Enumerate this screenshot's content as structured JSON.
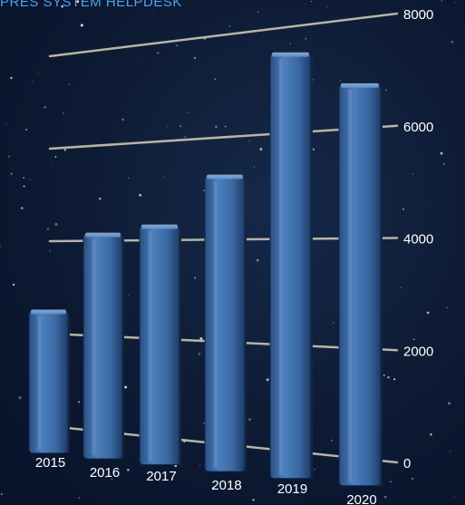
{
  "chart_data": {
    "type": "bar",
    "title": "PRES SYSTEM HELPDESK",
    "categories": [
      "2015",
      "2016",
      "2017",
      "2018",
      "2019",
      "2020"
    ],
    "values": [
      2500,
      4150,
      4300,
      5250,
      7500,
      6800
    ],
    "ylim": [
      0,
      8000
    ],
    "yticks": [
      "0",
      "2000",
      "4000",
      "6000",
      "8000"
    ],
    "grid": true,
    "colors": {
      "bar": "#3f6fa8",
      "grid": "#b8b4a6",
      "title": "#4fa3e8",
      "label": "#ffffff"
    }
  }
}
